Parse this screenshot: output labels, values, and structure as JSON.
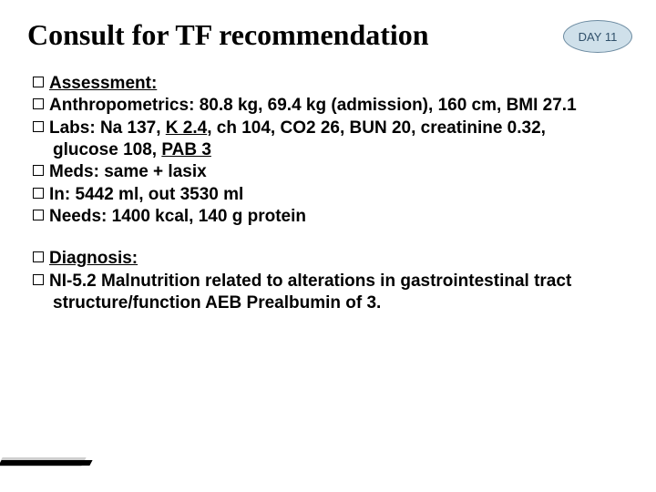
{
  "title": "Consult for TF recommendation",
  "badge": "DAY 11",
  "colors": {
    "badge_bg": "#cfe0ea",
    "badge_border": "#6b8aa0",
    "badge_text": "#30506a",
    "text": "#000000",
    "bg": "#ffffff",
    "accent_dark": "#000000",
    "accent_grey": "#cfcfcf"
  },
  "fonts": {
    "title_family": "Rockwell, Georgia, serif",
    "title_size_pt": 24,
    "body_family": "Verdana, Geneva, sans-serif",
    "body_size_pt": 14,
    "body_weight": 700
  },
  "section1": {
    "heading": "Assessment:",
    "anthro_label": "Anthropometrics: ",
    "anthro_value": "80.8 kg, 69.4 kg (admission), 160 cm, BMI 27.1",
    "labs_label": "Labs: ",
    "labs_pre": "Na 137, ",
    "labs_k": "K 2.4",
    "labs_mid": ", ch 104, CO2 26, BUN 20, creatinine 0.32, glucose 108, ",
    "labs_pab": "PAB 3",
    "meds_label": "Meds: ",
    "meds_value": "same + lasix",
    "in_label": "In: ",
    "in_value": "5442 ml, out 3530 ml",
    "needs_label": "Needs: ",
    "needs_value": "1400 kcal, 140 g protein"
  },
  "section2": {
    "heading": "Diagnosis:",
    "dx_label": "NI-5.2 ",
    "dx_text": "Malnutrition related to alterations in gastrointestinal tract structure/function AEB Prealbumin of 3."
  }
}
